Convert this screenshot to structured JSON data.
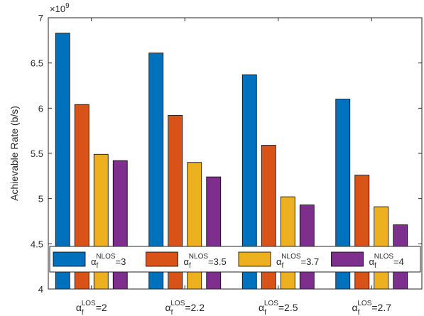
{
  "chart_data": {
    "type": "bar",
    "ylabel": "Achievable Rate (b/s)",
    "exponent_label": "×10",
    "exponent_power": "9",
    "ylim": [
      4,
      7
    ],
    "yticks": [
      4,
      4.5,
      5,
      5.5,
      6,
      6.5,
      7
    ],
    "ytick_labels": [
      "4",
      "4.5",
      "5",
      "5.5",
      "6",
      "6.5",
      "7"
    ],
    "categories": [
      {
        "symbol": "α",
        "sub": "f",
        "sup": "LOS",
        "value": "=2"
      },
      {
        "symbol": "α",
        "sub": "f",
        "sup": "LOS",
        "value": "=2.2"
      },
      {
        "symbol": "α",
        "sub": "f",
        "sup": "LOS",
        "value": "=2.5"
      },
      {
        "symbol": "α",
        "sub": "f",
        "sup": "LOS",
        "value": "=2.7"
      }
    ],
    "series": [
      {
        "symbol": "α",
        "sub": "f",
        "sup": "NLOS",
        "value": "=3",
        "color": "#0072BD",
        "values": [
          6.83,
          6.61,
          6.37,
          6.1
        ]
      },
      {
        "symbol": "α",
        "sub": "f",
        "sup": "NLOS",
        "value": "=3.5",
        "color": "#D95319",
        "values": [
          6.04,
          5.92,
          5.59,
          5.26
        ]
      },
      {
        "symbol": "α",
        "sub": "f",
        "sup": "NLOS",
        "value": "=3.7",
        "color": "#EDB120",
        "values": [
          5.49,
          5.4,
          5.02,
          4.91
        ]
      },
      {
        "symbol": "α",
        "sub": "f",
        "sup": "NLOS",
        "value": "=4",
        "color": "#7E2F8E",
        "values": [
          5.42,
          5.24,
          4.93,
          4.71
        ]
      }
    ],
    "grid": false,
    "legend": "bottom, horizontal, inside axes"
  }
}
